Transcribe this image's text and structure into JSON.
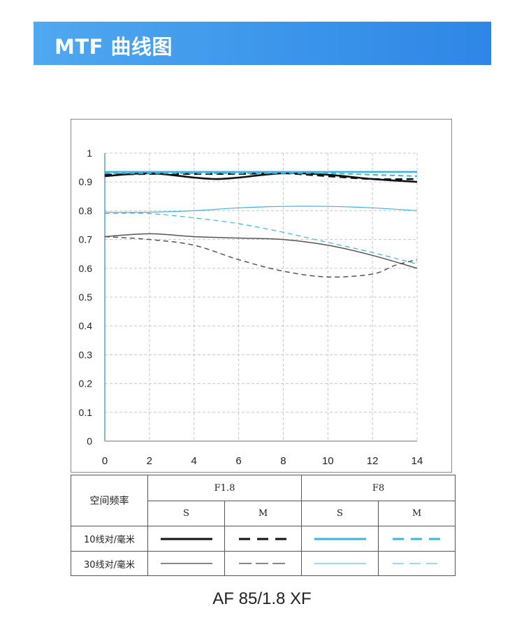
{
  "header": {
    "title": "MTF 曲线图"
  },
  "chart_data": {
    "type": "line",
    "xlim": [
      0,
      14
    ],
    "ylim": [
      0,
      1
    ],
    "xticks": [
      "0",
      "2",
      "4",
      "6",
      "8",
      "10",
      "12",
      "14"
    ],
    "yticks": [
      "0",
      "0.1",
      "0.2",
      "0.3",
      "0.4",
      "0.5",
      "0.6",
      "0.7",
      "0.8",
      "0.9",
      "1"
    ],
    "grid": true,
    "colors": {
      "f18": "#111111",
      "f8": "#3bb4e0"
    },
    "series": [
      {
        "aperture": "F1.8",
        "lp": "10",
        "dir": "S",
        "dashed": false,
        "color": "#111111",
        "width": 2.6,
        "x": [
          0,
          2,
          4,
          5,
          6,
          8,
          10,
          12,
          14
        ],
        "y": [
          0.92,
          0.93,
          0.915,
          0.91,
          0.915,
          0.93,
          0.925,
          0.91,
          0.9
        ]
      },
      {
        "aperture": "F1.8",
        "lp": "10",
        "dir": "M",
        "dashed": true,
        "color": "#111111",
        "width": 2.6,
        "x": [
          0,
          2,
          4,
          6,
          8,
          10,
          12,
          14
        ],
        "y": [
          0.925,
          0.928,
          0.928,
          0.928,
          0.93,
          0.92,
          0.91,
          0.91
        ]
      },
      {
        "aperture": "F8",
        "lp": "10",
        "dir": "S",
        "dashed": false,
        "color": "#3bb4e0",
        "width": 2.4,
        "x": [
          0,
          2,
          4,
          6,
          8,
          10,
          12,
          14
        ],
        "y": [
          0.935,
          0.935,
          0.935,
          0.935,
          0.935,
          0.935,
          0.935,
          0.935
        ]
      },
      {
        "aperture": "F8",
        "lp": "10",
        "dir": "M",
        "dashed": true,
        "color": "#3bb4e0",
        "width": 2.0,
        "x": [
          0,
          2,
          4,
          6,
          8,
          10,
          12,
          14
        ],
        "y": [
          0.93,
          0.93,
          0.93,
          0.93,
          0.93,
          0.93,
          0.925,
          0.92
        ]
      },
      {
        "aperture": "F1.8",
        "lp": "30",
        "dir": "S",
        "dashed": false,
        "color": "#555555",
        "width": 1.5,
        "x": [
          0,
          2,
          4,
          6,
          8,
          10,
          12,
          14
        ],
        "y": [
          0.71,
          0.72,
          0.71,
          0.705,
          0.7,
          0.68,
          0.645,
          0.6
        ]
      },
      {
        "aperture": "F1.8",
        "lp": "30",
        "dir": "M",
        "dashed": true,
        "color": "#555555",
        "width": 1.5,
        "x": [
          0,
          2,
          4,
          6,
          8,
          10,
          12,
          13,
          14
        ],
        "y": [
          0.71,
          0.7,
          0.68,
          0.63,
          0.59,
          0.57,
          0.58,
          0.61,
          0.63
        ]
      },
      {
        "aperture": "F8",
        "lp": "30",
        "dir": "S",
        "dashed": false,
        "color": "#3bb4e0",
        "width": 1.2,
        "x": [
          0,
          2,
          4,
          6,
          8,
          10,
          12,
          14
        ],
        "y": [
          0.795,
          0.795,
          0.8,
          0.81,
          0.815,
          0.815,
          0.81,
          0.8
        ]
      },
      {
        "aperture": "F8",
        "lp": "30",
        "dir": "M",
        "dashed": true,
        "color": "#3bb4e0",
        "width": 1.2,
        "x": [
          0,
          2,
          4,
          6,
          8,
          10,
          12,
          14
        ],
        "y": [
          0.79,
          0.79,
          0.775,
          0.755,
          0.725,
          0.69,
          0.655,
          0.615
        ]
      }
    ]
  },
  "legend": {
    "corner_label": "空间频率",
    "apertures": [
      "F1.8",
      "F8"
    ],
    "dirs": [
      "S",
      "M",
      "S",
      "M"
    ],
    "rows": [
      "10线对/毫米",
      "30线对/毫米"
    ]
  },
  "caption": "AF 85/1.8 XF"
}
